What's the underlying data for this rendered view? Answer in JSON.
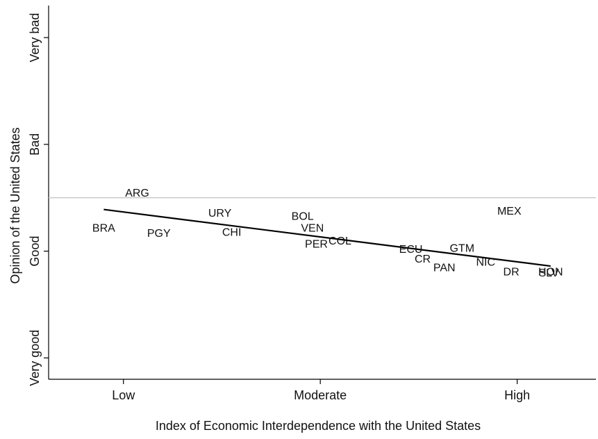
{
  "chart_data": {
    "type": "scatter",
    "title": "",
    "xlabel": "Index of Economic Interdependence with the United States",
    "ylabel": "Opinion of the United States",
    "xlim": [
      -0.38,
      2.4
    ],
    "ylim": [
      -1.2,
      2.3
    ],
    "x_ticks": [
      {
        "value": 0,
        "label": "Low"
      },
      {
        "value": 1,
        "label": "Moderate"
      },
      {
        "value": 2,
        "label": "High"
      }
    ],
    "y_ticks": [
      {
        "value": -1,
        "label": "Very good"
      },
      {
        "value": 0,
        "label": "Good"
      },
      {
        "value": 1,
        "label": "Bad"
      },
      {
        "value": 2,
        "label": "Very bad"
      }
    ],
    "reference_line": {
      "y": 0.5,
      "color": "#c8c8c8"
    },
    "fit_line": {
      "x": [
        -0.1,
        2.17
      ],
      "y": [
        0.39,
        -0.14
      ]
    },
    "points": [
      {
        "label": "ARG",
        "x": 0.07,
        "y": 0.54
      },
      {
        "label": "BRA",
        "x": -0.1,
        "y": 0.21
      },
      {
        "label": "PGY",
        "x": 0.18,
        "y": 0.16
      },
      {
        "label": "URY",
        "x": 0.49,
        "y": 0.35
      },
      {
        "label": "CHI",
        "x": 0.55,
        "y": 0.17
      },
      {
        "label": "BOL",
        "x": 0.91,
        "y": 0.32
      },
      {
        "label": "VEN",
        "x": 0.96,
        "y": 0.21
      },
      {
        "label": "PER",
        "x": 0.98,
        "y": 0.06
      },
      {
        "label": "COL",
        "x": 1.1,
        "y": 0.09
      },
      {
        "label": "ECU",
        "x": 1.46,
        "y": 0.01
      },
      {
        "label": "CR",
        "x": 1.52,
        "y": -0.08
      },
      {
        "label": "PAN",
        "x": 1.63,
        "y": -0.16
      },
      {
        "label": "GTM",
        "x": 1.72,
        "y": 0.02
      },
      {
        "label": "NIC",
        "x": 1.84,
        "y": -0.11
      },
      {
        "label": "MEX",
        "x": 1.96,
        "y": 0.37
      },
      {
        "label": "DR",
        "x": 1.97,
        "y": -0.2
      },
      {
        "label": "HON",
        "x": 2.17,
        "y": -0.2
      },
      {
        "label": "SLV",
        "x": 2.16,
        "y": -0.21
      }
    ],
    "grid": false
  }
}
